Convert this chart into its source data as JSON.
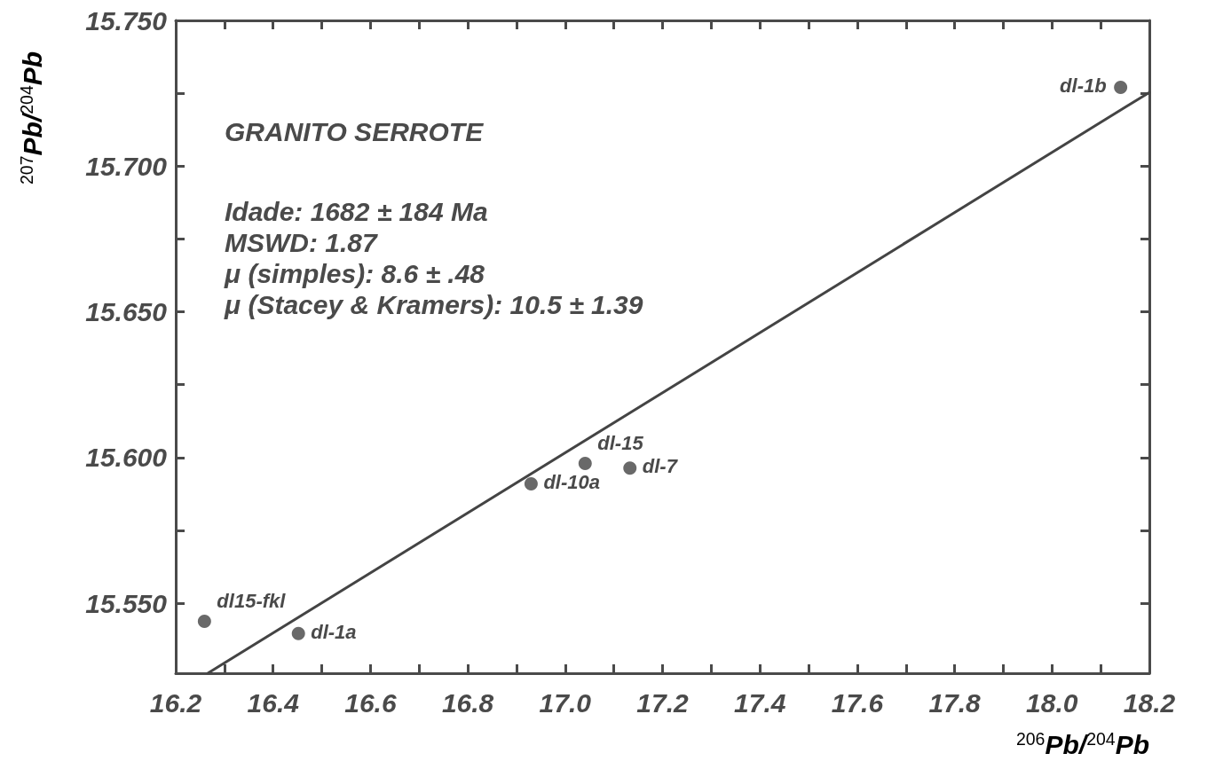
{
  "chart_data": {
    "type": "scatter",
    "title": "GRANITO SERROTE",
    "xlabel": "$^{206}$Pb/$^{204}$Pb",
    "ylabel": "$^{207}$Pb/$^{204}$Pb",
    "annotations": [
      "Idade: 1682 ± 184 Ma",
      "MSWD: 1.87",
      "μ (simples): 8.6 ± .48",
      "μ (Stacey & Kramers): 10.5 ± 1.39",
      {
        "text": "dl15-fkl",
        "x": 16.259,
        "y": 15.5438
      },
      {
        "text": "dl-1a",
        "x": 16.452,
        "y": 15.5396
      },
      {
        "text": "dl-10a",
        "x": 16.93,
        "y": 15.591
      },
      {
        "text": "dl-15",
        "x": 17.041,
        "y": 15.598
      },
      {
        "text": "dl-7",
        "x": 17.133,
        "y": 15.5964
      },
      {
        "text": "dl-1b",
        "x": 18.141,
        "y": 15.727
      }
    ],
    "series": [
      {
        "marker": "circle",
        "color": "#444444",
        "x": [
          16.259,
          16.452,
          16.93,
          17.041,
          17.133,
          18.141
        ],
        "values": [
          15.5438,
          15.5396,
          15.591,
          15.598,
          15.5964,
          15.727
        ]
      },
      {
        "type": "line",
        "marker": "none",
        "line_style": "solid",
        "color": "#444444",
        "x": [
          16.266,
          18.2
        ],
        "values": [
          15.526,
          15.7253
        ]
      }
    ],
    "xlim": [
      16.2,
      18.2
    ],
    "xticks": [
      16.2,
      {
        "value": 16.3,
        "label": null
      },
      16.4,
      {
        "value": 16.5,
        "label": null
      },
      16.6,
      {
        "value": 16.7,
        "label": null
      },
      16.8,
      {
        "value": 16.9,
        "label": null
      },
      {
        "value": 17.0,
        "label": "17.0"
      },
      {
        "value": 17.1,
        "label": null
      },
      17.2,
      {
        "value": 17.3,
        "label": null
      },
      17.4,
      {
        "value": 17.5,
        "label": null
      },
      17.6,
      {
        "value": 17.7,
        "label": null
      },
      17.8,
      {
        "value": 17.9,
        "label": null
      },
      {
        "value": 18.0,
        "label": "18.0"
      },
      {
        "value": 18.1,
        "label": null
      },
      18.2
    ],
    "ylim": [
      15.526,
      15.75
    ],
    "yticks": [
      {
        "value": 15.55,
        "label": "15.550"
      },
      {
        "value": 15.575,
        "label": null
      },
      {
        "value": 15.6,
        "label": "15.600"
      },
      {
        "value": 15.625,
        "label": null
      },
      {
        "value": 15.65,
        "label": "15.650"
      },
      {
        "value": 15.675,
        "label": null
      },
      {
        "value": 15.7,
        "label": "15.700"
      },
      {
        "value": 15.725,
        "label": null
      },
      {
        "value": 15.75,
        "label": "15.750"
      }
    ]
  }
}
